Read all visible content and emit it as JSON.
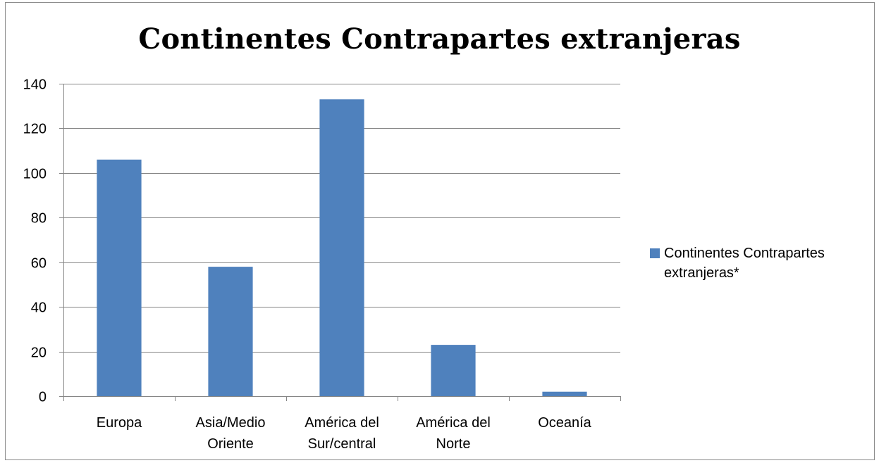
{
  "chart_data": {
    "type": "bar",
    "title": "Continentes Contrapartes extranjeras",
    "categories": [
      "Europa",
      "Asia/Medio Oriente",
      "América del Sur/central",
      "América del Norte",
      "Oceanía"
    ],
    "category_lines": [
      [
        "Europa"
      ],
      [
        "Asia/Medio",
        "Oriente"
      ],
      [
        "América del",
        "Sur/central"
      ],
      [
        "América del",
        "Norte"
      ],
      [
        "Oceanía"
      ]
    ],
    "series": [
      {
        "name": "Continentes Contrapartes extranjeras*",
        "values": [
          106,
          58,
          133,
          23,
          2
        ],
        "color": "#4f81bd"
      }
    ],
    "yticks": [
      0,
      20,
      40,
      60,
      80,
      100,
      120,
      140
    ],
    "ylim": [
      0,
      140
    ],
    "xlabel": "",
    "ylabel": "",
    "grid": true,
    "legend": "right"
  }
}
